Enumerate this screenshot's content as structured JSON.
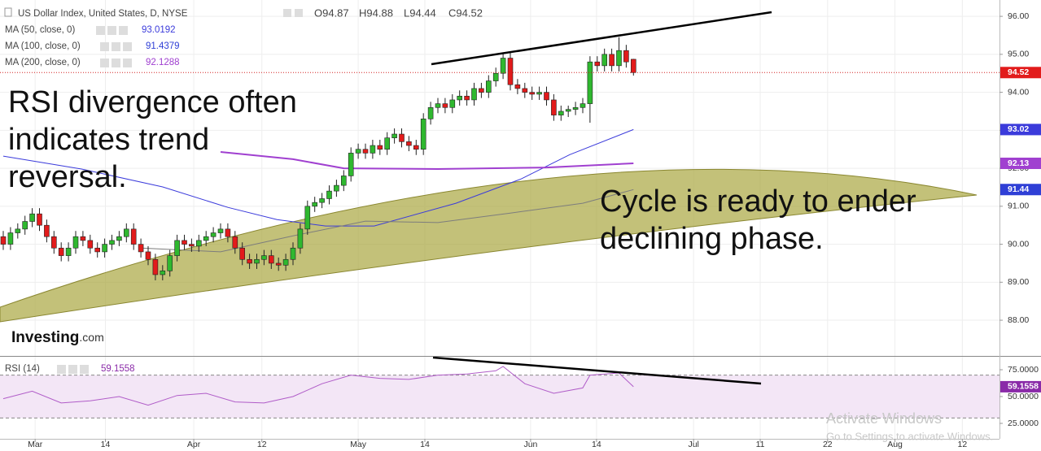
{
  "chart_data": {
    "type": "candlestick",
    "title": "US Dollar Index, United States, D, NYSE",
    "legend_ohlc": [
      "O94.87",
      "H94.88",
      "L94.44",
      "C94.52"
    ],
    "last_price_label": "94.52",
    "colors": {
      "up": "#2fb82f",
      "down": "#e21b1b",
      "price_line": "#d42020"
    },
    "candles": [
      [
        90.2,
        90.35,
        89.85,
        90.0
      ],
      [
        90.0,
        90.45,
        89.85,
        90.3
      ],
      [
        90.3,
        90.55,
        90.15,
        90.4
      ],
      [
        90.4,
        90.75,
        90.25,
        90.6
      ],
      [
        90.6,
        90.95,
        90.45,
        90.8
      ],
      [
        90.8,
        90.95,
        90.35,
        90.5
      ],
      [
        90.5,
        90.65,
        90.05,
        90.2
      ],
      [
        90.2,
        90.35,
        89.75,
        89.9
      ],
      [
        89.9,
        90.05,
        89.55,
        89.7
      ],
      [
        89.7,
        90.05,
        89.55,
        89.9
      ],
      [
        89.9,
        90.35,
        89.75,
        90.2
      ],
      [
        90.2,
        90.35,
        89.95,
        90.1
      ],
      [
        90.1,
        90.25,
        89.75,
        89.9
      ],
      [
        89.9,
        90.05,
        89.65,
        89.8
      ],
      [
        89.8,
        90.15,
        89.65,
        90.0
      ],
      [
        90.0,
        90.25,
        89.85,
        90.1
      ],
      [
        90.1,
        90.35,
        89.95,
        90.2
      ],
      [
        90.2,
        90.55,
        90.05,
        90.4
      ],
      [
        90.4,
        90.55,
        89.85,
        90.0
      ],
      [
        90.0,
        90.15,
        89.65,
        89.8
      ],
      [
        89.8,
        89.95,
        89.45,
        89.6
      ],
      [
        89.6,
        89.75,
        89.05,
        89.2
      ],
      [
        89.2,
        89.45,
        89.05,
        89.3
      ],
      [
        89.3,
        89.85,
        89.15,
        89.7
      ],
      [
        89.7,
        90.25,
        89.55,
        90.1
      ],
      [
        90.1,
        90.25,
        89.85,
        90.0
      ],
      [
        90.0,
        90.15,
        89.8,
        89.95
      ],
      [
        89.95,
        90.25,
        89.8,
        90.1
      ],
      [
        90.1,
        90.35,
        89.95,
        90.2
      ],
      [
        90.2,
        90.45,
        90.05,
        90.3
      ],
      [
        90.3,
        90.55,
        90.15,
        90.4
      ],
      [
        90.4,
        90.55,
        90.05,
        90.2
      ],
      [
        90.2,
        90.35,
        89.75,
        89.9
      ],
      [
        89.9,
        90.05,
        89.45,
        89.6
      ],
      [
        89.6,
        89.75,
        89.35,
        89.5
      ],
      [
        89.5,
        89.75,
        89.35,
        89.6
      ],
      [
        89.6,
        89.85,
        89.45,
        89.7
      ],
      [
        89.7,
        89.85,
        89.35,
        89.5
      ],
      [
        89.5,
        89.65,
        89.3,
        89.45
      ],
      [
        89.45,
        89.75,
        89.3,
        89.6
      ],
      [
        89.6,
        90.05,
        89.45,
        89.9
      ],
      [
        89.9,
        90.55,
        89.75,
        90.4
      ],
      [
        90.4,
        91.15,
        90.25,
        91.0
      ],
      [
        91.0,
        91.25,
        90.85,
        91.1
      ],
      [
        91.1,
        91.35,
        90.95,
        91.2
      ],
      [
        91.2,
        91.55,
        91.05,
        91.4
      ],
      [
        91.4,
        91.7,
        91.25,
        91.55
      ],
      [
        91.55,
        91.95,
        91.4,
        91.8
      ],
      [
        91.8,
        92.55,
        91.65,
        92.4
      ],
      [
        92.4,
        92.65,
        92.25,
        92.5
      ],
      [
        92.5,
        92.65,
        92.25,
        92.4
      ],
      [
        92.4,
        92.75,
        92.25,
        92.6
      ],
      [
        92.6,
        92.75,
        92.35,
        92.5
      ],
      [
        92.5,
        92.95,
        92.35,
        92.8
      ],
      [
        92.8,
        93.05,
        92.65,
        92.9
      ],
      [
        92.9,
        93.05,
        92.55,
        92.7
      ],
      [
        92.7,
        92.85,
        92.45,
        92.6
      ],
      [
        92.6,
        92.75,
        92.35,
        92.5
      ],
      [
        92.5,
        93.45,
        92.35,
        93.3
      ],
      [
        93.3,
        93.75,
        93.15,
        93.6
      ],
      [
        93.6,
        93.85,
        93.45,
        93.7
      ],
      [
        93.7,
        93.85,
        93.45,
        93.6
      ],
      [
        93.6,
        93.95,
        93.45,
        93.8
      ],
      [
        93.8,
        94.05,
        93.65,
        93.9
      ],
      [
        93.9,
        94.05,
        93.65,
        93.8
      ],
      [
        93.8,
        94.25,
        93.65,
        94.1
      ],
      [
        94.1,
        94.25,
        93.85,
        94.0
      ],
      [
        94.0,
        94.45,
        93.85,
        94.3
      ],
      [
        94.3,
        94.65,
        94.15,
        94.5
      ],
      [
        94.5,
        95.05,
        94.35,
        94.9
      ],
      [
        94.9,
        95.05,
        94.05,
        94.2
      ],
      [
        94.2,
        94.35,
        93.95,
        94.1
      ],
      [
        94.1,
        94.25,
        93.85,
        94.0
      ],
      [
        94.0,
        94.15,
        93.8,
        93.95
      ],
      [
        93.95,
        94.15,
        93.8,
        94.0
      ],
      [
        94.0,
        94.15,
        93.65,
        93.8
      ],
      [
        93.8,
        93.95,
        93.25,
        93.4
      ],
      [
        93.4,
        93.65,
        93.25,
        93.5
      ],
      [
        93.5,
        93.65,
        93.35,
        93.55
      ],
      [
        93.55,
        93.75,
        93.4,
        93.6
      ],
      [
        93.6,
        93.85,
        93.45,
        93.7
      ],
      [
        93.7,
        94.95,
        93.2,
        94.8
      ],
      [
        94.8,
        94.95,
        94.55,
        94.7
      ],
      [
        94.7,
        95.15,
        94.55,
        95.0
      ],
      [
        95.0,
        95.15,
        94.55,
        94.7
      ],
      [
        94.7,
        95.45,
        94.55,
        95.1
      ],
      [
        95.1,
        95.25,
        94.65,
        94.8
      ],
      [
        94.87,
        94.88,
        94.44,
        94.52
      ]
    ],
    "xlim": [
      -0.45,
      137.53
    ],
    "xticks": [
      {
        "value": 4.4,
        "label": "Mar"
      },
      {
        "value": 14.1,
        "label": "14"
      },
      {
        "value": 26.3,
        "label": "Apr"
      },
      {
        "value": 35.7,
        "label": "12"
      },
      {
        "value": 49,
        "label": "May"
      },
      {
        "value": 58.2,
        "label": "14"
      },
      {
        "value": 72.8,
        "label": "Jun"
      },
      {
        "value": 81.9,
        "label": "14"
      },
      {
        "value": 95.3,
        "label": "Jul"
      },
      {
        "value": 104.5,
        "label": "11"
      },
      {
        "value": 113.8,
        "label": "22"
      },
      {
        "value": 123.1,
        "label": "Aug"
      },
      {
        "value": 132.4,
        "label": "12"
      }
    ],
    "ylim": [
      87.06,
      96.43
    ],
    "yticks": [
      {
        "value": 96,
        "label": "96.00"
      },
      {
        "value": 95,
        "label": "95.00"
      },
      {
        "value": 94,
        "label": "94.00"
      },
      {
        "value": 93,
        "label": "93.00"
      },
      {
        "value": 92,
        "label": "92.00"
      },
      {
        "value": 91,
        "label": "91.00"
      },
      {
        "value": 90,
        "label": "90.00"
      },
      {
        "value": 89,
        "label": "89.00"
      },
      {
        "value": 88,
        "label": "88.00"
      }
    ],
    "ma": [
      {
        "name": "MA (50, close, 0)",
        "legend_value": "93.0192",
        "tag": "93.02",
        "color": "#3b3bdb",
        "x": [
          0,
          10.8,
          22,
          31,
          37.8,
          44.5,
          51.2,
          62.5,
          71.5,
          78.2,
          87
        ],
        "values": [
          92.32,
          91.98,
          91.51,
          90.97,
          90.65,
          90.48,
          90.48,
          91.08,
          91.72,
          92.36,
          93.02
        ]
      },
      {
        "name": "MA (100, close, 0)",
        "legend_value": "91.4379",
        "tag": "91.44",
        "color": "#7d7d7d",
        "tag_color": "#2f3fd6",
        "x": [
          19,
          30,
          40,
          50,
          60,
          70,
          80,
          87
        ],
        "values": [
          89.9,
          89.8,
          90.22,
          90.61,
          90.57,
          90.82,
          91.08,
          91.44
        ]
      },
      {
        "name": "MA (200, close, 0)",
        "legend_value": "92.1288",
        "tag": "92.13",
        "color": "#a040d0",
        "x": [
          30,
          40,
          47,
          60,
          75,
          87
        ],
        "values": [
          92.43,
          92.24,
          92.0,
          91.98,
          92.02,
          92.13
        ]
      }
    ],
    "rsi": {
      "name": "RSI (14)",
      "legend_value": "59.1558",
      "tag": "59.1558",
      "color": "#b05cc8",
      "x": [
        0,
        4,
        8,
        12,
        16,
        20,
        24,
        28,
        32,
        36,
        40,
        44,
        48,
        52,
        56,
        60,
        64,
        68,
        69,
        72,
        76,
        80,
        81,
        85,
        87
      ],
      "values": [
        48,
        55,
        44,
        46,
        50,
        42,
        51,
        53,
        45,
        44,
        50,
        62,
        70,
        67,
        66,
        70,
        71,
        74,
        78,
        62,
        53,
        58,
        70,
        72,
        59.1558
      ],
      "ylim": [
        10.6,
        86.36
      ],
      "yticks": [
        {
          "value": 75,
          "label": "75.0000"
        },
        {
          "value": 50,
          "label": "50.0000"
        },
        {
          "value": 25,
          "label": "25.0000"
        }
      ],
      "bands": [
        30,
        70
      ]
    },
    "annotations": [
      [
        "RSI divergence often",
        "indicates trend",
        "reversal."
      ],
      [
        "Cycle is ready to ender",
        "declining phase."
      ]
    ],
    "brand": [
      "Investing",
      ".com"
    ]
  },
  "watermark": [
    "Activate Windows",
    "Go to Settings to activate Windows."
  ]
}
